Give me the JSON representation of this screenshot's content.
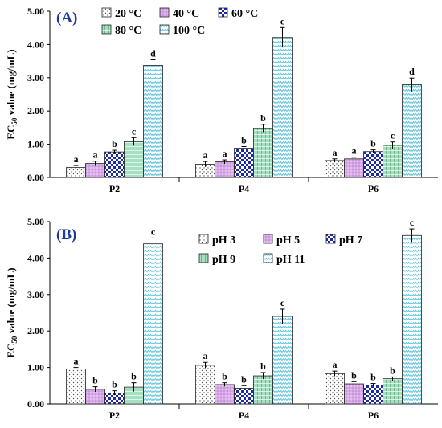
{
  "chart_data": [
    {
      "type": "bar",
      "panel_label": "(A)",
      "categories": [
        "P2",
        "P4",
        "P6"
      ],
      "ylabel_main": "EC",
      "ylabel_sub": "50",
      "ylabel_rest": " value (mg/mL)",
      "ylim": [
        0,
        5
      ],
      "yticks": [
        "0.00",
        "1.00",
        "2.00",
        "3.00",
        "4.00",
        "5.00"
      ],
      "series": [
        {
          "name": "20 °C",
          "pattern": "dots",
          "values": [
            0.3,
            0.4,
            0.51
          ],
          "errors": [
            0.06,
            0.08,
            0.05
          ],
          "letters": [
            "a",
            "a",
            "a"
          ]
        },
        {
          "name": "40 °C",
          "pattern": "pink",
          "values": [
            0.42,
            0.47,
            0.56
          ],
          "errors": [
            0.07,
            0.06,
            0.05
          ],
          "letters": [
            "a",
            "a",
            "a"
          ]
        },
        {
          "name": "60 °C",
          "pattern": "check",
          "values": [
            0.77,
            0.88,
            0.78
          ],
          "errors": [
            0.05,
            0.05,
            0.05
          ],
          "letters": [
            "b",
            "b",
            "b"
          ]
        },
        {
          "name": "80 °C",
          "pattern": "green",
          "values": [
            1.08,
            1.47,
            0.97
          ],
          "errors": [
            0.12,
            0.13,
            0.1
          ],
          "letters": [
            "c",
            "b",
            "c"
          ]
        },
        {
          "name": "100 °C",
          "pattern": "zigzag",
          "values": [
            3.37,
            4.21,
            2.79
          ],
          "errors": [
            0.17,
            0.3,
            0.2
          ],
          "letters": [
            "d",
            "c",
            "d"
          ]
        }
      ]
    },
    {
      "type": "bar",
      "panel_label": "(B)",
      "categories": [
        "P2",
        "P4",
        "P6"
      ],
      "ylabel_main": "EC",
      "ylabel_sub": "50",
      "ylabel_rest": " value (mg/mL)",
      "ylim": [
        0,
        5
      ],
      "yticks": [
        "0.00",
        "1.00",
        "2.00",
        "3.00",
        "4.00",
        "5.00"
      ],
      "series": [
        {
          "name": "pH 3",
          "pattern": "dots",
          "values": [
            0.96,
            1.06,
            0.83
          ],
          "errors": [
            0.04,
            0.08,
            0.07
          ],
          "letters": [
            "a",
            "a",
            "a"
          ]
        },
        {
          "name": "pH 5",
          "pattern": "pink",
          "values": [
            0.4,
            0.53,
            0.55
          ],
          "errors": [
            0.07,
            0.05,
            0.06
          ],
          "letters": [
            "b",
            "b",
            "b"
          ]
        },
        {
          "name": "pH 7",
          "pattern": "check",
          "values": [
            0.3,
            0.43,
            0.52
          ],
          "errors": [
            0.06,
            0.07,
            0.04
          ],
          "letters": [
            "b",
            "b",
            "b"
          ]
        },
        {
          "name": "pH 9",
          "pattern": "green",
          "values": [
            0.46,
            0.77,
            0.69
          ],
          "errors": [
            0.12,
            0.09,
            0.05
          ],
          "letters": [
            "b",
            "b",
            "b"
          ]
        },
        {
          "name": "pH 11",
          "pattern": "zigzag",
          "values": [
            4.39,
            2.4,
            4.62
          ],
          "errors": [
            0.16,
            0.2,
            0.18
          ],
          "letters": [
            "c",
            "c",
            "c"
          ]
        }
      ]
    }
  ]
}
